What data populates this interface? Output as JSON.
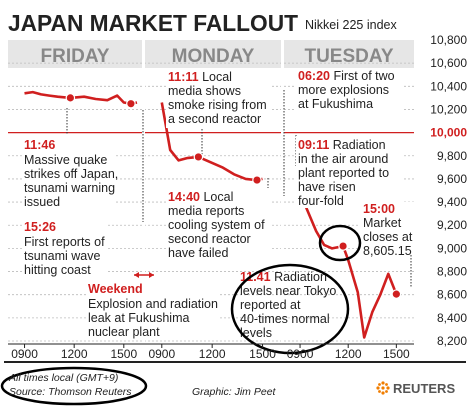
{
  "title": "JAPAN MARKET FALLOUT",
  "subtitle": "Nikkei 225 index",
  "days": [
    "FRIDAY",
    "MONDAY",
    "TUESDAY"
  ],
  "footer": {
    "note": "All times local (GMT+9)",
    "source": "Source: Thomson Reuters",
    "graphic": "Graphic: Jim Peet",
    "brand": "REUTERS"
  },
  "colors": {
    "accent": "#d01f1f",
    "grid": "#bcbcbc",
    "day_bg": "#e6e6e6",
    "text": "#222222",
    "circle": "#000000"
  },
  "annotations": [
    {
      "time": "11:46",
      "text": [
        "Massive quake",
        "strikes off Japan,",
        "tsunami warning",
        "issued"
      ]
    },
    {
      "time": "15:26",
      "text": [
        "First reports of",
        "tsunami wave",
        "hitting coast"
      ]
    },
    {
      "time": "Weekend",
      "text": [
        "Explosion and radiation",
        "leak at Fukushima",
        "nuclear plant"
      ]
    },
    {
      "time": "11:11",
      "text": [
        "Local",
        "media shows",
        "smoke rising from",
        "a second reactor"
      ]
    },
    {
      "time": "14:40",
      "text": [
        "Local",
        "media reports",
        "cooling system of",
        "second reactor",
        "have failed"
      ]
    },
    {
      "time": "06:20",
      "text": [
        "First of two",
        "more explosions",
        "at Fukushima"
      ]
    },
    {
      "time": "09:11",
      "text": [
        "Radiation",
        "in the air around",
        "plant reported to",
        "have risen",
        "four-fold"
      ]
    },
    {
      "time": "11.41",
      "text": [
        "Radiation",
        "levels near Tokyo",
        "reported at",
        "40-times normal",
        "levels"
      ]
    },
    {
      "time": "15:00",
      "text": [
        "Market",
        "closes at",
        "8,605.15"
      ]
    }
  ],
  "chart_data": {
    "type": "line",
    "title": "JAPAN MARKET FALLOUT",
    "subtitle": "Nikkei 225 index",
    "ylim": [
      8200,
      10800
    ],
    "yticks": [
      8200,
      8400,
      8600,
      8800,
      9000,
      9200,
      9400,
      9600,
      9800,
      10000,
      10200,
      10400,
      10600,
      10800
    ],
    "ytick_labels": [
      "8,200",
      "8,400",
      "8,600",
      "8,800",
      "9,000",
      "9,200",
      "9,400",
      "9,600",
      "9,800",
      "10,000",
      "10,200",
      "10,400",
      "10,600",
      "10,800"
    ],
    "reference_line": 10000,
    "grid": true,
    "x_segments": [
      {
        "day": "FRIDAY",
        "tick_labels": [
          "0900",
          "1200",
          "1500"
        ]
      },
      {
        "day": "MONDAY",
        "tick_labels": [
          "0900",
          "1200",
          "1500"
        ]
      },
      {
        "day": "TUESDAY",
        "tick_labels": [
          "0900",
          "1200",
          "1500"
        ]
      }
    ],
    "series": [
      {
        "points": [
          {
            "day": 0,
            "hour": 9.0,
            "value": 10340
          },
          {
            "day": 0,
            "hour": 9.5,
            "value": 10350
          },
          {
            "day": 0,
            "hour": 10.0,
            "value": 10330
          },
          {
            "day": 0,
            "hour": 10.5,
            "value": 10320
          },
          {
            "day": 0,
            "hour": 11.0,
            "value": 10310
          },
          {
            "day": 0,
            "hour": 11.77,
            "value": 10300
          },
          {
            "day": 0,
            "hour": 12.6,
            "value": 10310
          },
          {
            "day": 0,
            "hour": 13.3,
            "value": 10290
          },
          {
            "day": 0,
            "hour": 14.0,
            "value": 10280
          },
          {
            "day": 0,
            "hour": 14.6,
            "value": 10320
          },
          {
            "day": 0,
            "hour": 15.0,
            "value": 10260
          },
          {
            "day": 0,
            "hour": 15.43,
            "value": 10250
          },
          {
            "day": 0,
            "hour": 15.8,
            "value": 10260
          },
          {
            "day": 1,
            "hour": 9.0,
            "value": 10260
          },
          {
            "day": 1,
            "hour": 9.5,
            "value": 9850
          },
          {
            "day": 1,
            "hour": 10.0,
            "value": 9760
          },
          {
            "day": 1,
            "hour": 10.5,
            "value": 9780
          },
          {
            "day": 1,
            "hour": 11.18,
            "value": 9790
          },
          {
            "day": 1,
            "hour": 12.6,
            "value": 9700
          },
          {
            "day": 1,
            "hour": 13.3,
            "value": 9640
          },
          {
            "day": 1,
            "hour": 14.0,
            "value": 9600
          },
          {
            "day": 1,
            "hour": 14.67,
            "value": 9590
          },
          {
            "day": 1,
            "hour": 15.0,
            "value": 9600
          },
          {
            "day": 2,
            "hour": 9.0,
            "value": 9590
          },
          {
            "day": 2,
            "hour": 9.18,
            "value": 9420
          },
          {
            "day": 2,
            "hour": 10.0,
            "value": 9150
          },
          {
            "day": 2,
            "hour": 10.5,
            "value": 9030
          },
          {
            "day": 2,
            "hour": 11.0,
            "value": 9000
          },
          {
            "day": 2,
            "hour": 11.68,
            "value": 9020
          },
          {
            "day": 2,
            "hour": 12.0,
            "value": 8900
          },
          {
            "day": 2,
            "hour": 12.6,
            "value": 8620
          },
          {
            "day": 2,
            "hour": 13.0,
            "value": 8230
          },
          {
            "day": 2,
            "hour": 13.5,
            "value": 8450
          },
          {
            "day": 2,
            "hour": 14.0,
            "value": 8600
          },
          {
            "day": 2,
            "hour": 14.5,
            "value": 8780
          },
          {
            "day": 2,
            "hour": 15.0,
            "value": 8605
          }
        ]
      }
    ],
    "markers": [
      {
        "day": 0,
        "hour": 11.77,
        "value": 10300
      },
      {
        "day": 0,
        "hour": 15.43,
        "value": 10250
      },
      {
        "day": 1,
        "hour": 11.18,
        "value": 9790
      },
      {
        "day": 1,
        "hour": 14.67,
        "value": 9590
      },
      {
        "day": 2,
        "hour": 9.18,
        "value": 9420
      },
      {
        "day": 2,
        "hour": 11.68,
        "value": 9020
      },
      {
        "day": 2,
        "hour": 15.0,
        "value": 8605
      }
    ]
  }
}
